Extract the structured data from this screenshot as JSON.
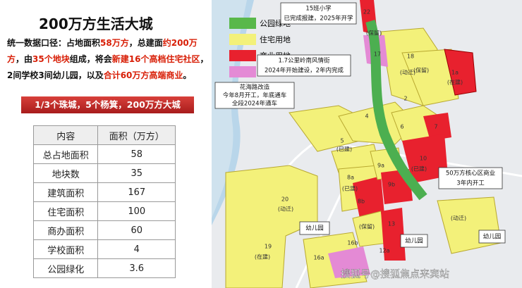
{
  "header": {
    "title": "200万方生活大城"
  },
  "intro": {
    "lines": [
      [
        {
          "text": "统一数据口径：占地面积",
          "tone": "plain"
        },
        {
          "text": "58万方",
          "tone": "red"
        },
        {
          "text": "，总建面",
          "tone": "plain"
        },
        {
          "text": "约200万",
          "tone": "red"
        }
      ],
      [
        {
          "text": "方",
          "tone": "red"
        },
        {
          "text": "，由",
          "tone": "plain"
        },
        {
          "text": "35个地块",
          "tone": "red"
        },
        {
          "text": "组成，将会",
          "tone": "plain"
        },
        {
          "text": "新建16个高档住宅社区",
          "tone": "red"
        },
        {
          "text": "，",
          "tone": "plain"
        }
      ],
      [
        {
          "text": "2间学校3间幼儿园，以及",
          "tone": "plain"
        },
        {
          "text": "合计60万方高端商业",
          "tone": "red"
        },
        {
          "text": "。",
          "tone": "plain"
        }
      ]
    ]
  },
  "banner": "1/3个珠城，5个杨箕，200万方大城",
  "table": {
    "header": [
      "内容",
      "面积（万方）"
    ],
    "rows": [
      [
        "总占地面积",
        58
      ],
      [
        "地块数",
        35
      ],
      [
        "建筑面积",
        167
      ],
      [
        "住宅面积",
        100
      ],
      [
        "商办面积",
        60
      ],
      [
        "学校面积",
        4
      ],
      [
        "公园绿化",
        3.6
      ]
    ]
  },
  "map": {
    "legend": [
      "公园绿地",
      "住宅用地",
      "商业用地"
    ],
    "callouts": [
      [
        "15班小学",
        "已完成报建，2025年开学"
      ],
      [
        "1.7公里岭南风情街",
        "2024年开始建设，2年内完成"
      ],
      [
        "花海路改造",
        "今年8月开工，年底通车",
        "全段2024年通车"
      ],
      [
        "50万方核心区商业",
        "3年内开工"
      ],
      [
        "幼儿园"
      ],
      [
        "幼儿园"
      ],
      [
        "幼儿园"
      ]
    ],
    "plots": [
      "22",
      "17",
      "18",
      "(保留)",
      "(动迁)",
      "1a",
      "(在建)",
      "(保留)",
      "2",
      "4",
      "5",
      "6",
      "7",
      "(已建)",
      "8a",
      "8b",
      "(已建)",
      "9a",
      "9b",
      "10",
      "(已建)",
      "20",
      "(动迁)",
      "19",
      "(在建)",
      "13",
      "12a",
      "16a",
      "16b",
      "(保留)",
      "(动迁)"
    ],
    "watermark": "搜狐号@搜狐焦点来宾站"
  }
}
